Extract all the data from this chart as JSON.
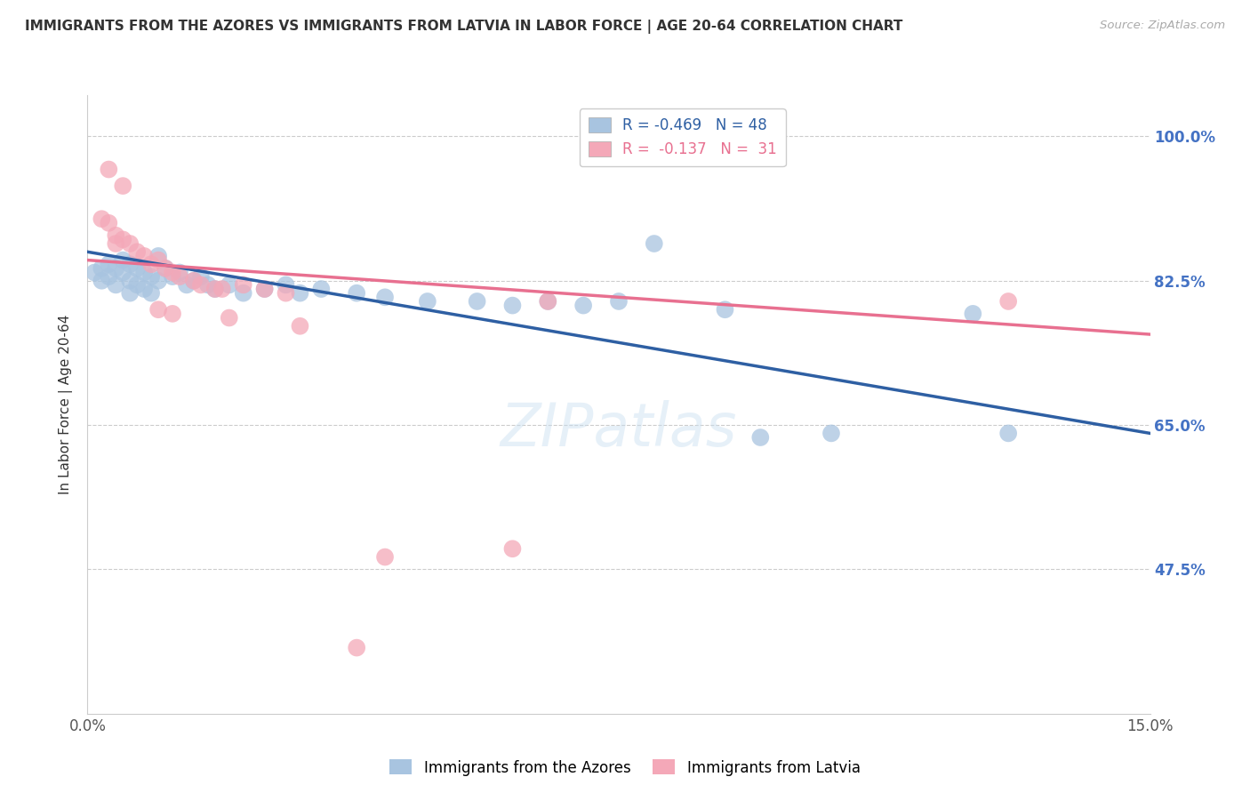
{
  "title": "IMMIGRANTS FROM THE AZORES VS IMMIGRANTS FROM LATVIA IN LABOR FORCE | AGE 20-64 CORRELATION CHART",
  "source": "Source: ZipAtlas.com",
  "ylabel": "In Labor Force | Age 20-64",
  "ytick_labels": [
    "100.0%",
    "82.5%",
    "65.0%",
    "47.5%"
  ],
  "ytick_values": [
    1.0,
    0.825,
    0.65,
    0.475
  ],
  "xlim": [
    0.0,
    0.15
  ],
  "ylim": [
    0.3,
    1.05
  ],
  "watermark": "ZIPatlas",
  "blue_color": "#a8c4e0",
  "pink_color": "#f4a8b8",
  "blue_line_color": "#2e5fa3",
  "pink_line_color": "#e87090",
  "blue_scatter": [
    [
      0.001,
      0.835
    ],
    [
      0.002,
      0.84
    ],
    [
      0.002,
      0.825
    ],
    [
      0.003,
      0.845
    ],
    [
      0.003,
      0.83
    ],
    [
      0.004,
      0.84
    ],
    [
      0.004,
      0.82
    ],
    [
      0.005,
      0.85
    ],
    [
      0.005,
      0.835
    ],
    [
      0.006,
      0.845
    ],
    [
      0.006,
      0.825
    ],
    [
      0.006,
      0.81
    ],
    [
      0.007,
      0.84
    ],
    [
      0.007,
      0.82
    ],
    [
      0.008,
      0.835
    ],
    [
      0.008,
      0.815
    ],
    [
      0.009,
      0.83
    ],
    [
      0.009,
      0.81
    ],
    [
      0.01,
      0.855
    ],
    [
      0.01,
      0.825
    ],
    [
      0.011,
      0.84
    ],
    [
      0.012,
      0.83
    ],
    [
      0.013,
      0.835
    ],
    [
      0.014,
      0.82
    ],
    [
      0.015,
      0.825
    ],
    [
      0.016,
      0.83
    ],
    [
      0.017,
      0.82
    ],
    [
      0.018,
      0.815
    ],
    [
      0.02,
      0.82
    ],
    [
      0.022,
      0.81
    ],
    [
      0.025,
      0.815
    ],
    [
      0.028,
      0.82
    ],
    [
      0.03,
      0.81
    ],
    [
      0.033,
      0.815
    ],
    [
      0.038,
      0.81
    ],
    [
      0.042,
      0.805
    ],
    [
      0.048,
      0.8
    ],
    [
      0.055,
      0.8
    ],
    [
      0.06,
      0.795
    ],
    [
      0.065,
      0.8
    ],
    [
      0.07,
      0.795
    ],
    [
      0.075,
      0.8
    ],
    [
      0.08,
      0.87
    ],
    [
      0.09,
      0.79
    ],
    [
      0.095,
      0.635
    ],
    [
      0.105,
      0.64
    ],
    [
      0.125,
      0.785
    ],
    [
      0.13,
      0.64
    ]
  ],
  "pink_scatter": [
    [
      0.002,
      0.9
    ],
    [
      0.003,
      0.895
    ],
    [
      0.004,
      0.88
    ],
    [
      0.004,
      0.87
    ],
    [
      0.005,
      0.875
    ],
    [
      0.006,
      0.87
    ],
    [
      0.007,
      0.86
    ],
    [
      0.008,
      0.855
    ],
    [
      0.009,
      0.845
    ],
    [
      0.01,
      0.85
    ],
    [
      0.011,
      0.84
    ],
    [
      0.012,
      0.835
    ],
    [
      0.013,
      0.83
    ],
    [
      0.015,
      0.825
    ],
    [
      0.016,
      0.82
    ],
    [
      0.018,
      0.815
    ],
    [
      0.019,
      0.815
    ],
    [
      0.022,
      0.82
    ],
    [
      0.025,
      0.815
    ],
    [
      0.028,
      0.81
    ],
    [
      0.003,
      0.96
    ],
    [
      0.005,
      0.94
    ],
    [
      0.01,
      0.79
    ],
    [
      0.012,
      0.785
    ],
    [
      0.02,
      0.78
    ],
    [
      0.03,
      0.77
    ],
    [
      0.042,
      0.49
    ],
    [
      0.06,
      0.5
    ],
    [
      0.065,
      0.8
    ],
    [
      0.13,
      0.8
    ],
    [
      0.038,
      0.38
    ]
  ],
  "blue_line_x": [
    0.0,
    0.15
  ],
  "blue_line_y": [
    0.86,
    0.64
  ],
  "pink_line_x": [
    0.0,
    0.15
  ],
  "pink_line_y": [
    0.85,
    0.76
  ],
  "background_color": "#ffffff",
  "grid_color": "#cccccc",
  "title_color": "#333333",
  "right_axis_color": "#4472c4"
}
